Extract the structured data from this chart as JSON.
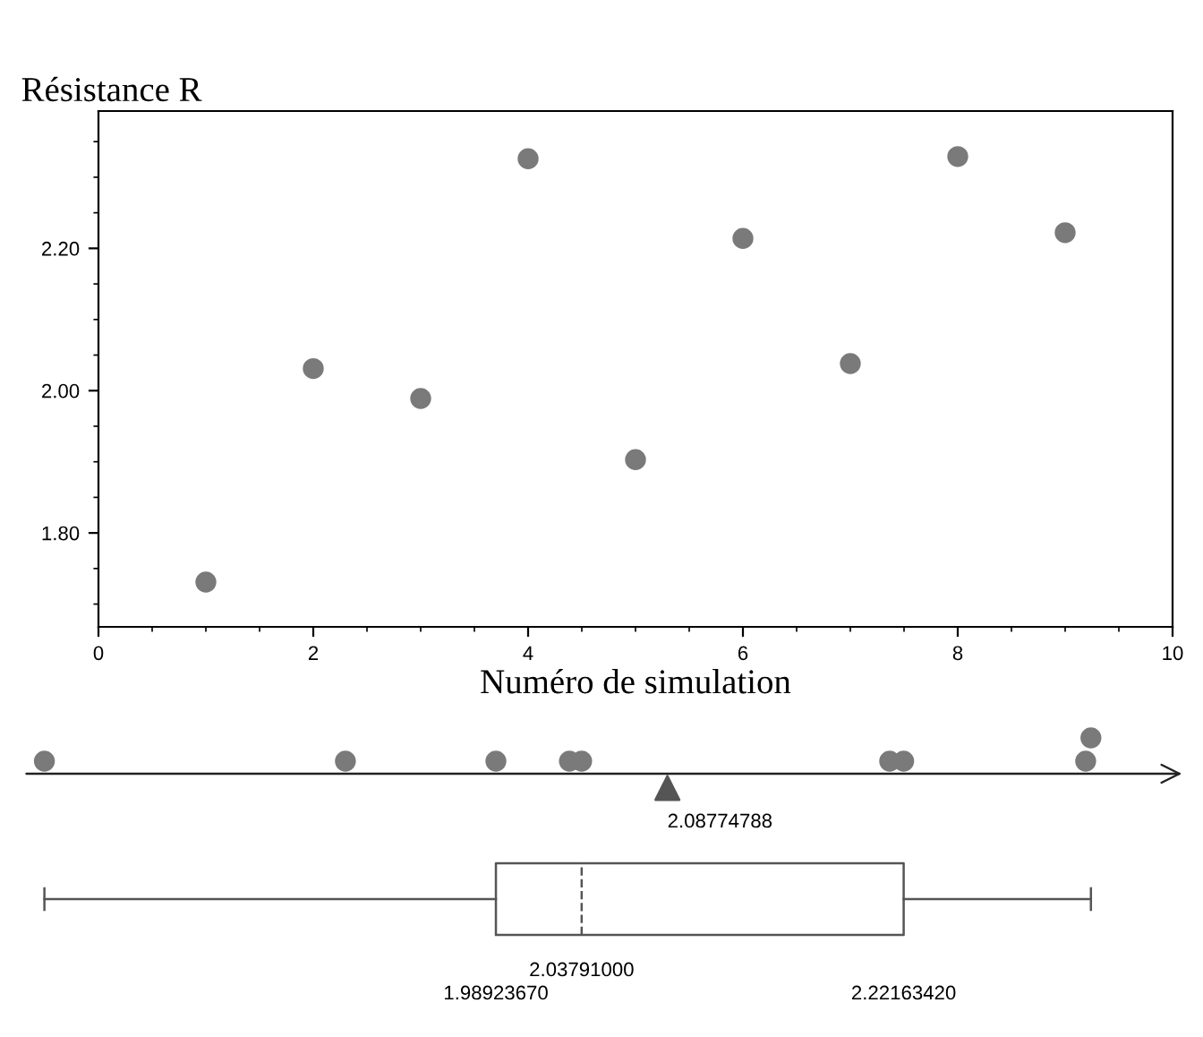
{
  "chart_data": [
    {
      "type": "scatter",
      "ylabel": "Résistance R",
      "xlabel": "Numéro de simulation",
      "x": [
        1,
        2,
        3,
        4,
        5,
        6,
        7,
        8,
        9
      ],
      "series": [
        {
          "color": "#7a7a7a",
          "values": [
            1.731,
            2.031,
            1.989,
            2.326,
            1.903,
            2.214,
            2.038,
            2.329,
            2.222
          ]
        }
      ],
      "xlim": [
        0,
        10
      ],
      "xticks": [
        0,
        2,
        4,
        6,
        8,
        10
      ],
      "ylim": [
        1.668,
        2.393
      ],
      "yticks": [
        {
          "value": 1.8,
          "label": "1.80"
        },
        {
          "value": 2.0,
          "label": "2.00"
        },
        {
          "value": 2.2,
          "label": "2.20"
        }
      ],
      "marker": "circle",
      "grid": false
    },
    {
      "type": "other",
      "annotations": [
        "2.08774788",
        "2.03791000",
        "1.98923670",
        "2.22163420"
      ]
    }
  ]
}
